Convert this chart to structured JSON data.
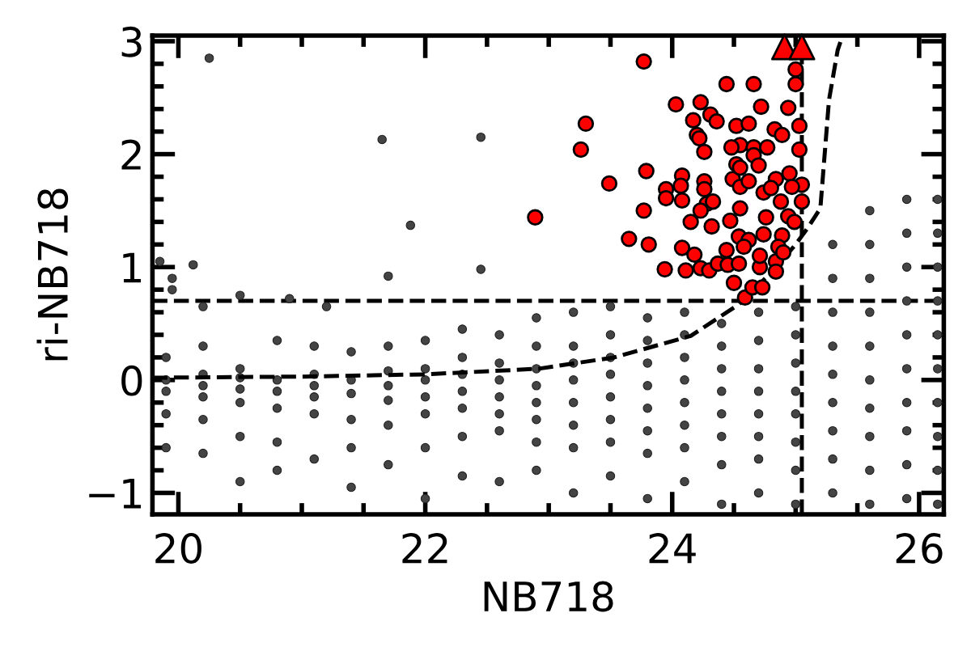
{
  "chart_data": {
    "type": "scatter",
    "xlabel": "NB718",
    "ylabel": "ri-NB718",
    "xlim": [
      19.79,
      26.2
    ],
    "xticks": [
      20,
      22,
      24,
      26
    ],
    "ylim": [
      -1.19,
      3.05
    ],
    "yticks": [
      {
        "value": -1,
        "label": "−1"
      },
      0,
      1,
      2,
      3
    ],
    "grid": false,
    "legend": false,
    "ref_lines": [
      {
        "axis": "y",
        "value": 0.7,
        "color": "#000000",
        "line_style": "dashed"
      },
      {
        "axis": "x",
        "value": 25.05,
        "color": "#000000",
        "line_style": "dashed"
      }
    ],
    "series": [
      {
        "color": "#444444",
        "marker": "circle",
        "x": [
          20.25,
          21.65,
          21.88,
          22.45,
          21.7,
          22.45,
          19.85,
          20.12,
          19.95,
          19.95,
          20.2,
          20.5,
          20.9,
          21.2,
          19.9,
          19.9,
          19.9,
          19.9,
          19.9,
          20.2,
          20.2,
          20.2,
          20.2,
          20.2,
          20.2,
          20.5,
          20.5,
          20.5,
          20.5,
          20.5,
          20.5,
          20.8,
          20.8,
          20.8,
          20.8,
          20.8,
          20.8,
          21.1,
          21.1,
          21.1,
          21.1,
          21.1,
          21.1,
          21.4,
          21.4,
          21.4,
          21.4,
          21.4,
          21.4,
          21.7,
          21.7,
          21.7,
          21.7,
          21.7,
          21.7,
          22.0,
          22.0,
          22.0,
          22.0,
          22.0,
          22.0,
          22.0,
          22.3,
          22.3,
          22.3,
          22.3,
          22.3,
          22.3,
          22.3,
          22.6,
          22.6,
          22.6,
          22.6,
          22.6,
          22.6,
          22.6,
          22.9,
          22.9,
          22.9,
          22.9,
          22.9,
          22.9,
          22.9,
          22.9,
          23.2,
          23.2,
          23.2,
          23.2,
          23.2,
          23.2,
          23.2,
          23.2,
          23.5,
          23.5,
          23.5,
          23.5,
          23.5,
          23.5,
          23.5,
          23.5,
          23.8,
          23.8,
          23.8,
          23.8,
          23.8,
          23.8,
          23.8,
          23.8,
          24.1,
          24.1,
          24.1,
          24.1,
          24.1,
          24.1,
          24.1,
          24.1,
          24.4,
          24.4,
          24.4,
          24.4,
          24.4,
          24.4,
          24.4,
          24.4,
          24.7,
          24.7,
          24.7,
          24.7,
          24.7,
          24.7,
          24.7,
          24.7,
          25.0,
          25.0,
          25.0,
          25.0,
          25.0,
          25.0,
          25.0,
          25.0,
          25.3,
          25.3,
          25.3,
          25.3,
          25.3,
          25.3,
          25.3,
          25.3,
          25.3,
          25.6,
          25.6,
          25.6,
          25.6,
          25.6,
          25.6,
          25.6,
          25.6,
          25.6,
          25.6,
          25.9,
          25.9,
          25.9,
          25.9,
          25.9,
          25.9,
          25.9,
          25.9,
          25.9,
          25.9,
          26.15,
          26.15,
          26.15,
          26.15,
          26.15,
          26.15,
          26.15,
          26.15,
          26.15,
          26.15
        ],
        "values": [
          2.85,
          2.13,
          1.37,
          2.15,
          0.92,
          0.98,
          1.05,
          1.02,
          0.9,
          0.8,
          0.65,
          0.75,
          0.72,
          0.65,
          -0.6,
          -0.3,
          -0.1,
          0.0,
          0.2,
          -0.65,
          -0.35,
          -0.15,
          -0.05,
          0.05,
          0.3,
          -0.9,
          -0.5,
          -0.2,
          -0.08,
          0.02,
          0.1,
          -0.8,
          -0.55,
          -0.25,
          -0.1,
          0.0,
          0.35,
          -0.7,
          -0.3,
          -0.15,
          -0.05,
          0.05,
          0.3,
          -0.95,
          -0.6,
          -0.35,
          -0.12,
          0.0,
          0.25,
          -0.75,
          -0.4,
          -0.18,
          -0.05,
          0.08,
          0.3,
          -1.05,
          -0.6,
          -0.3,
          -0.15,
          0.0,
          0.1,
          0.35,
          -0.85,
          -0.5,
          -0.25,
          -0.1,
          0.05,
          0.2,
          0.45,
          -0.9,
          -0.45,
          -0.3,
          -0.15,
          0.0,
          0.15,
          0.4,
          -0.8,
          -0.55,
          -0.35,
          -0.2,
          -0.05,
          0.1,
          0.3,
          0.55,
          -1.0,
          -0.6,
          -0.4,
          -0.2,
          0.0,
          0.15,
          0.3,
          0.6,
          -0.85,
          -0.55,
          -0.35,
          -0.15,
          0.05,
          0.2,
          0.4,
          0.65,
          -1.05,
          -0.65,
          -0.45,
          -0.25,
          -0.05,
          0.15,
          0.35,
          0.55,
          -0.9,
          -0.6,
          -0.4,
          -0.2,
          0.0,
          0.2,
          0.4,
          0.6,
          -1.1,
          -0.75,
          -0.5,
          -0.3,
          -0.1,
          0.1,
          0.3,
          0.5,
          -1.0,
          -0.7,
          -0.5,
          -0.3,
          -0.1,
          0.1,
          0.35,
          0.6,
          -1.1,
          -0.8,
          -0.55,
          -0.3,
          -0.1,
          0.15,
          0.4,
          0.65,
          -1.0,
          -0.7,
          -0.45,
          -0.2,
          0.05,
          0.3,
          0.6,
          0.9,
          1.2,
          -1.1,
          -0.8,
          -0.5,
          -0.25,
          0.0,
          0.3,
          0.6,
          0.9,
          1.2,
          1.5,
          -1.05,
          -0.75,
          -0.45,
          -0.2,
          0.1,
          0.4,
          0.7,
          1.0,
          1.3,
          1.6,
          -1.1,
          -0.8,
          -0.5,
          -0.2,
          0.1,
          0.4,
          0.7,
          1.0,
          1.3,
          1.6
        ]
      },
      {
        "type": "line",
        "color": "#000000",
        "line_style": "dashed",
        "marker": "none",
        "x": [
          19.79,
          21.0,
          22.0,
          22.92,
          23.53,
          24.15,
          24.54,
          24.8,
          25.0,
          25.1,
          25.2,
          25.27,
          25.34,
          25.38
        ],
        "values": [
          0.02,
          0.03,
          0.05,
          0.1,
          0.2,
          0.39,
          0.67,
          0.95,
          1.2,
          1.35,
          1.52,
          2.48,
          2.92,
          3.05
        ]
      },
      {
        "color": "#ff0000",
        "marker": "circle",
        "x": [
          23.77,
          23.3,
          23.26,
          22.89,
          23.49,
          23.79,
          23.77,
          23.65,
          23.81,
          23.94,
          24.03,
          24.23,
          24.17,
          24.31,
          24.36,
          24.2,
          24.22,
          24.26,
          24.44,
          24.66,
          25.0,
          25.0,
          24.72,
          24.94,
          24.52,
          24.62,
          24.83,
          24.89,
          25.03,
          24.55,
          24.48,
          24.66,
          24.77,
          24.66,
          25.03,
          24.7,
          24.08,
          23.95,
          24.07,
          24.26,
          23.95,
          24.08,
          24.26,
          24.49,
          24.55,
          24.62,
          24.52,
          24.55,
          24.84,
          24.95,
          25.05,
          24.74,
          24.8,
          24.97,
          24.88,
          25.05,
          24.28,
          24.23,
          24.33,
          24.15,
          24.55,
          24.47,
          24.32,
          24.76,
          24.94,
          24.99,
          24.54,
          24.62,
          24.74,
          24.89,
          24.08,
          24.18,
          24.44,
          24.58,
          24.86,
          24.11,
          24.23,
          24.3,
          24.37,
          24.45,
          24.54,
          24.71,
          24.84,
          24.9,
          24.71,
          24.5,
          24.59,
          24.65,
          24.73,
          24.84
        ],
        "values": [
          2.82,
          2.27,
          2.04,
          1.44,
          1.74,
          1.85,
          1.5,
          1.25,
          1.2,
          0.98,
          2.44,
          2.46,
          2.3,
          2.35,
          2.29,
          2.17,
          2.14,
          2.02,
          2.62,
          2.62,
          2.75,
          2.62,
          2.42,
          2.41,
          2.25,
          2.27,
          2.22,
          2.17,
          2.25,
          2.08,
          2.06,
          2.06,
          2.06,
          1.99,
          2.04,
          1.9,
          1.81,
          1.69,
          1.72,
          1.76,
          1.61,
          1.59,
          1.69,
          1.78,
          1.71,
          1.76,
          1.91,
          1.88,
          1.78,
          1.83,
          1.73,
          1.66,
          1.7,
          1.71,
          1.58,
          1.58,
          1.56,
          1.5,
          1.58,
          1.4,
          1.52,
          1.41,
          1.36,
          1.44,
          1.45,
          1.4,
          1.27,
          1.24,
          1.29,
          1.28,
          1.17,
          1.11,
          1.15,
          1.18,
          1.18,
          0.97,
          0.99,
          0.97,
          1.03,
          1.02,
          1.03,
          1.0,
          1.05,
          1.13,
          1.1,
          0.86,
          0.73,
          0.82,
          0.82,
          0.96
        ]
      },
      {
        "color": "#ff0000",
        "marker": "triangle",
        "x": [
          24.91,
          25.05
        ],
        "values": [
          2.95,
          2.95
        ]
      }
    ]
  }
}
